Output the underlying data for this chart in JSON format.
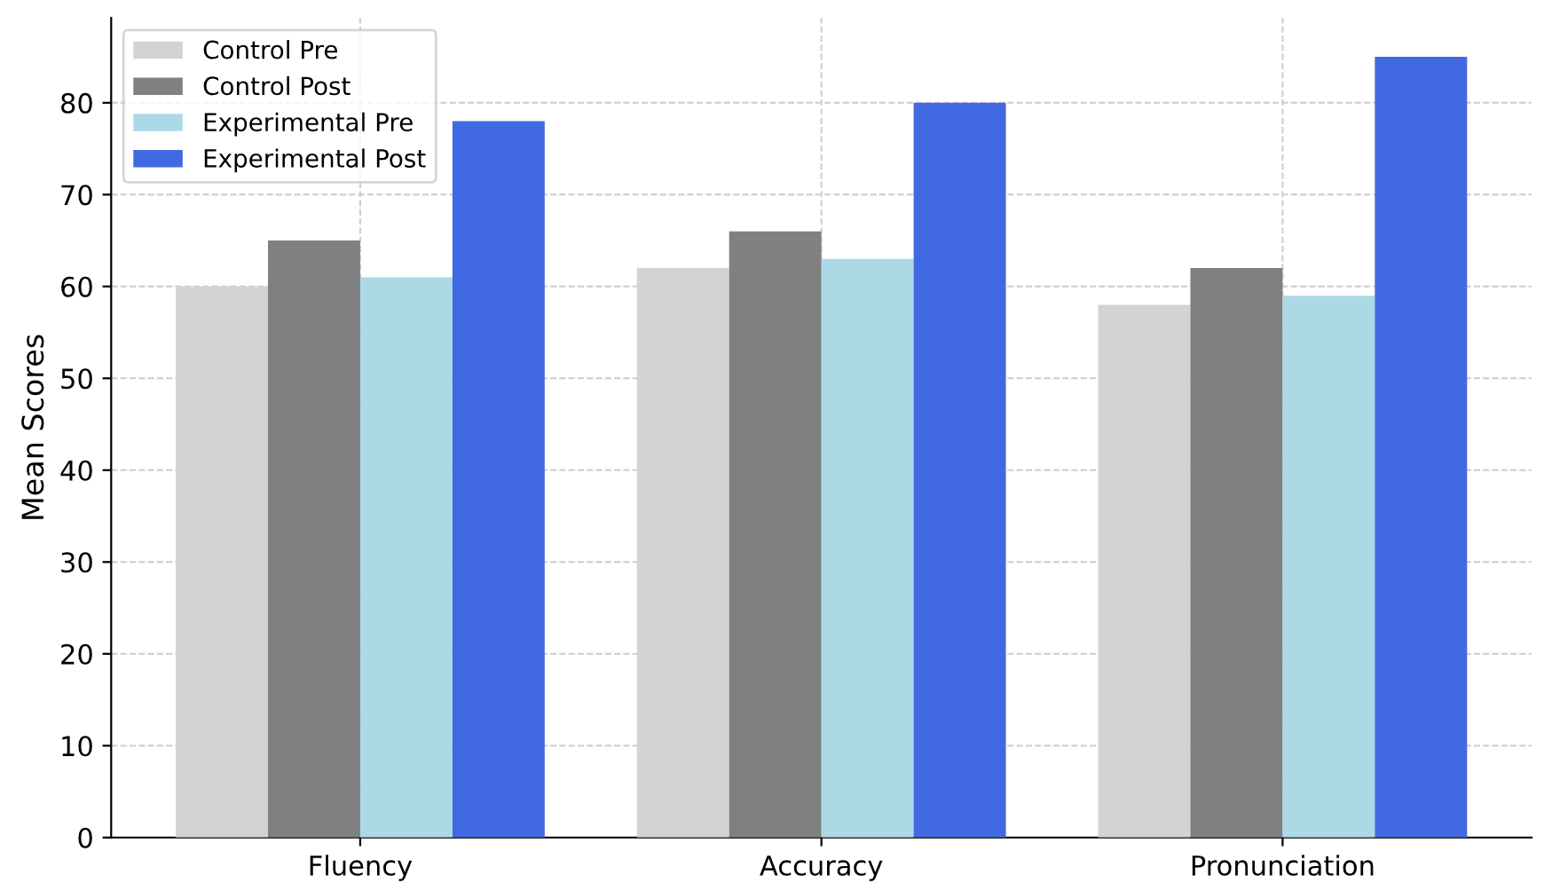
{
  "chart_data": {
    "type": "bar",
    "ylabel": "Mean Scores",
    "categories": [
      "Fluency",
      "Accuracy",
      "Pronunciation"
    ],
    "series": [
      {
        "name": "Control Pre",
        "color": "#d3d3d3",
        "values": [
          60,
          62,
          58
        ]
      },
      {
        "name": "Control Post",
        "color": "#808080",
        "values": [
          65,
          66,
          62
        ]
      },
      {
        "name": "Experimental Pre",
        "color": "#add8e6",
        "values": [
          61,
          63,
          59
        ]
      },
      {
        "name": "Experimental Post",
        "color": "#4169e1",
        "values": [
          78,
          80,
          85
        ]
      }
    ],
    "ylim": [
      0,
      89.25
    ],
    "yticks": [
      0,
      10,
      20,
      30,
      40,
      50,
      60,
      70,
      80
    ],
    "grid": true,
    "legend": "top left"
  }
}
